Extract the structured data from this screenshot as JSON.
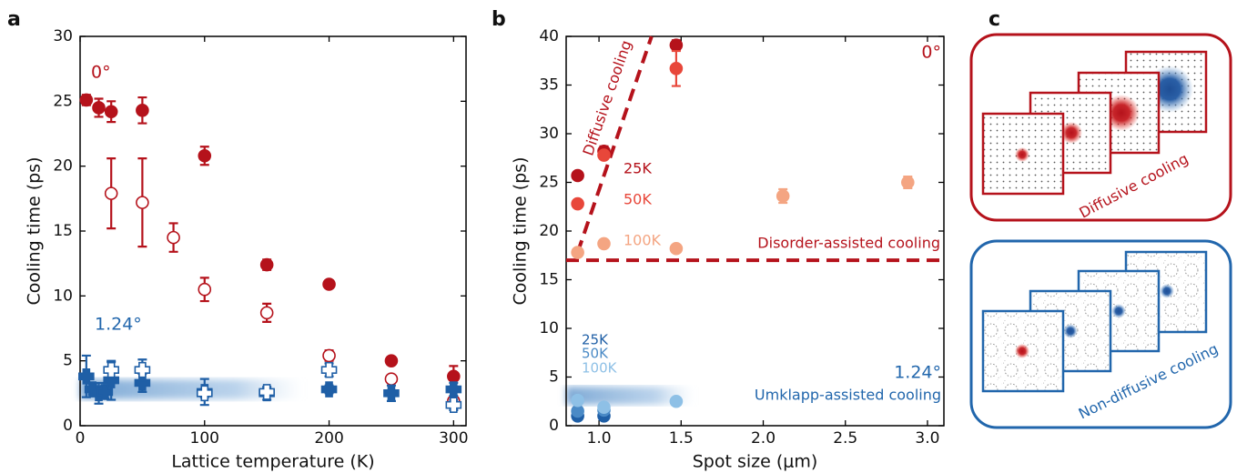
{
  "chart_data": [
    {
      "type": "scatter",
      "panel_label": "a",
      "xlabel": "Lattice temperature (K)",
      "ylabel": "Cooling time (ps)",
      "xlim": [
        0,
        310
      ],
      "ylim": [
        0,
        30
      ],
      "xticks": [
        0,
        100,
        200,
        300
      ],
      "yticks": [
        0,
        5,
        10,
        15,
        20,
        25,
        30
      ],
      "annotations": [
        {
          "text": "0°",
          "color": "#b5121b"
        },
        {
          "text": "1.24°",
          "color": "#2166ac"
        }
      ],
      "series": [
        {
          "color": "#b5121b",
          "marker": "circle",
          "filled": true,
          "x": [
            5,
            15,
            25,
            50,
            100,
            150,
            200,
            250,
            300
          ],
          "values": [
            25.1,
            24.5,
            24.2,
            24.3,
            20.8,
            12.4,
            10.9,
            5.0,
            3.8
          ],
          "errors": [
            0.4,
            0.7,
            0.8,
            1.0,
            0.7,
            0.4,
            0.3,
            0.3,
            0.8
          ]
        },
        {
          "color": "#b5121b",
          "marker": "circle",
          "filled": false,
          "x": [
            25,
            50,
            75,
            100,
            150,
            200,
            250,
            300
          ],
          "values": [
            17.9,
            17.2,
            14.5,
            10.5,
            8.7,
            5.4,
            3.6,
            1.9
          ],
          "errors": [
            2.7,
            3.4,
            1.1,
            0.9,
            0.7,
            0.4,
            0.2,
            0.3
          ]
        },
        {
          "color": "#1f5fa6",
          "marker": "plus",
          "filled": true,
          "x": [
            5,
            10,
            15,
            20,
            25,
            50,
            100,
            150,
            200,
            250,
            300
          ],
          "values": [
            3.8,
            2.8,
            2.5,
            2.6,
            3.5,
            3.3,
            2.6,
            2.5,
            2.8,
            2.5,
            2.8
          ],
          "errors": [
            1.6,
            0.4,
            0.8,
            0.5,
            1.5,
            0.7,
            1.0,
            0.5,
            0.3,
            0.6,
            0.5
          ]
        },
        {
          "color": "#1f5fa6",
          "marker": "plus",
          "filled": false,
          "x": [
            25,
            50,
            100,
            150,
            200,
            300
          ],
          "values": [
            4.3,
            4.3,
            2.5,
            2.6,
            4.3,
            1.6
          ],
          "errors": [
            0.6,
            0.8,
            0.3,
            0.3,
            0.5,
            0.4
          ]
        }
      ]
    },
    {
      "type": "scatter",
      "panel_label": "b",
      "xlabel": "Spot size (μm)",
      "ylabel": "Cooling time (ps)",
      "xlim": [
        0.8,
        3.1
      ],
      "ylim": [
        0,
        40
      ],
      "xticks": [
        {
          "value": 1,
          "label": "1.0"
        },
        1.5,
        {
          "value": 2,
          "label": "2.0"
        },
        2.5,
        {
          "value": 3,
          "label": "3.0"
        }
      ],
      "yticks": [
        0,
        5,
        10,
        15,
        20,
        25,
        30,
        35,
        40
      ],
      "annotations": [
        {
          "text": "0°",
          "color": "#b5121b"
        },
        {
          "text": "1.24°",
          "color": "#2166ac"
        },
        {
          "text": "Umklapp-assisted cooling",
          "color": "#2166ac"
        }
      ],
      "lines": [
        {
          "label": "Diffusive cooling",
          "color": "#b5121b",
          "x": [
            0.87,
            1.32
          ],
          "values": [
            17.8,
            40
          ]
        },
        {
          "label": "Disorder-assisted cooling",
          "color": "#b5121b",
          "x": [
            0.8,
            3.1
          ],
          "values": [
            17,
            17
          ]
        }
      ],
      "series": [
        {
          "name": "25K",
          "color": "#b5121b",
          "marker": "circle",
          "filled": true,
          "x": [
            0.87,
            1.03,
            1.47
          ],
          "values": [
            25.7,
            28.2,
            39.1
          ],
          "errors": [
            null,
            0.5,
            0.5
          ]
        },
        {
          "name": "50K",
          "color": "#e8473a",
          "marker": "circle",
          "filled": true,
          "x": [
            0.87,
            1.03,
            1.47
          ],
          "values": [
            22.8,
            27.8,
            36.7
          ],
          "errors": [
            null,
            null,
            1.8
          ]
        },
        {
          "name": "100K",
          "color": "#f4a582",
          "marker": "circle",
          "filled": true,
          "x": [
            0.87,
            1.03,
            1.47,
            2.12,
            2.88
          ],
          "values": [
            17.8,
            18.7,
            18.2,
            23.6,
            25.0
          ],
          "errors": [
            null,
            null,
            null,
            0.7,
            0.6
          ]
        },
        {
          "name": "25K",
          "color": "#1f5fa6",
          "marker": "circle",
          "filled": true,
          "x": [
            0.87,
            1.03
          ],
          "values": [
            1.0,
            1.0
          ],
          "errors": [
            null,
            null
          ]
        },
        {
          "name": "50K",
          "color": "#4a8ac6",
          "marker": "circle",
          "filled": true,
          "x": [
            0.87,
            1.03
          ],
          "values": [
            1.5,
            1.6
          ],
          "errors": [
            null,
            null
          ]
        },
        {
          "name": "100K",
          "color": "#8ec0e6",
          "marker": "circle",
          "filled": true,
          "x": [
            0.87,
            1.03,
            1.47
          ],
          "values": [
            2.6,
            1.9,
            2.5
          ],
          "errors": [
            0.3,
            0.3,
            0.3
          ]
        }
      ]
    }
  ],
  "diagram": {
    "label": "c",
    "top_caption": "Diffusive cooling",
    "bottom_caption": "Non-diffusive cooling"
  }
}
